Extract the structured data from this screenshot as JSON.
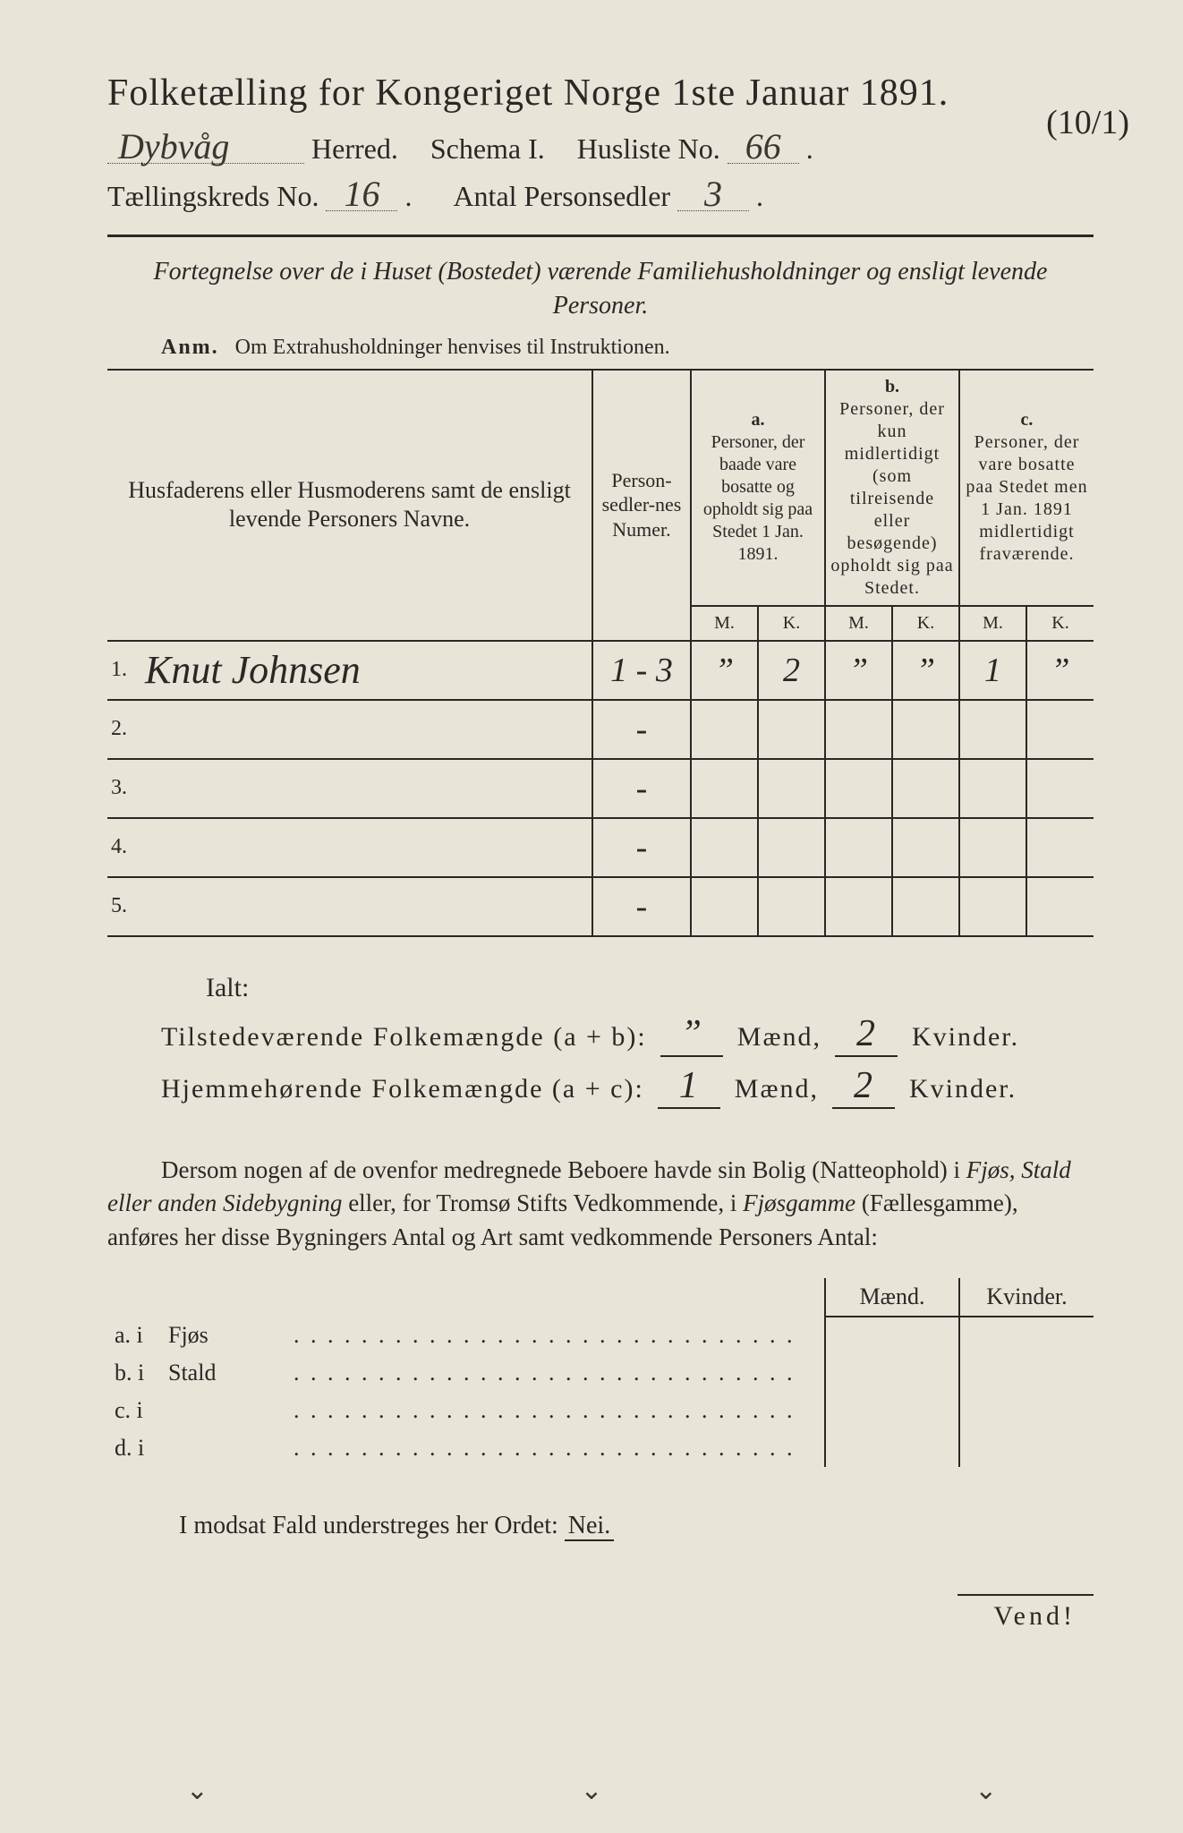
{
  "header": {
    "title": "Folketælling for Kongeriget Norge 1ste Januar 1891.",
    "herred_value": "Dybvåg",
    "herred_label": "Herred.",
    "schema_label": "Schema I.",
    "husliste_label": "Husliste No.",
    "husliste_value": "66",
    "annotation": "(10/1)",
    "kreds_label": "Tællingskreds No.",
    "kreds_value": "16",
    "antal_label": "Antal Personsedler",
    "antal_value": "3"
  },
  "subtitle": "Fortegnelse over de i Huset (Bostedet) værende Familiehusholdninger og ensligt levende Personer.",
  "anm_label": "Anm.",
  "anm_text": "Om Extrahusholdninger henvises til Instruktionen.",
  "table": {
    "col_names": "Husfaderens eller Husmoderens samt de ensligt levende Personers Navne.",
    "col_nums": "Person-sedler-nes Numer.",
    "col_a_label": "a.",
    "col_a": "Personer, der baade vare bosatte og opholdt sig paa Stedet 1 Jan. 1891.",
    "col_b_label": "b.",
    "col_b": "Personer, der kun midlertidigt (som tilreisende eller besøgende) opholdt sig paa Stedet.",
    "col_c_label": "c.",
    "col_c": "Personer, der vare bosatte paa Stedet men 1 Jan. 1891 midlertidigt fraværende.",
    "m": "M.",
    "k": "K.",
    "rows": [
      {
        "n": "1.",
        "name": "Knut Johnsen",
        "nums": "1 - 3",
        "a_m": "”",
        "a_k": "2",
        "b_m": "”",
        "b_k": "”",
        "c_m": "1",
        "c_k": "”"
      },
      {
        "n": "2.",
        "name": "",
        "nums": "-",
        "a_m": "",
        "a_k": "",
        "b_m": "",
        "b_k": "",
        "c_m": "",
        "c_k": ""
      },
      {
        "n": "3.",
        "name": "",
        "nums": "-",
        "a_m": "",
        "a_k": "",
        "b_m": "",
        "b_k": "",
        "c_m": "",
        "c_k": ""
      },
      {
        "n": "4.",
        "name": "",
        "nums": "-",
        "a_m": "",
        "a_k": "",
        "b_m": "",
        "b_k": "",
        "c_m": "",
        "c_k": ""
      },
      {
        "n": "5.",
        "name": "",
        "nums": "-",
        "a_m": "",
        "a_k": "",
        "b_m": "",
        "b_k": "",
        "c_m": "",
        "c_k": ""
      }
    ]
  },
  "totals": {
    "ialt": "Ialt:",
    "line1_label": "Tilstedeværende Folkemængde (a + b):",
    "line1_m": "”",
    "line1_k": "2",
    "line2_label": "Hjemmehørende Folkemængde (a + c):",
    "line2_m": "1",
    "line2_k": "2",
    "maend": "Mænd,",
    "kvinder": "Kvinder."
  },
  "paragraph": "Dersom nogen af de ovenfor medregnede Beboere havde sin Bolig (Natteophold) i Fjøs, Stald eller anden Sidebygning eller, for Tromsø Stifts Vedkommende, i Fjøsgamme (Fællesgamme), anføres her disse Bygningers Antal og Art samt vedkommende Personers Antal:",
  "subtable": {
    "maend": "Mænd.",
    "kvinder": "Kvinder.",
    "rows": [
      {
        "lab": "a.  i",
        "type": "Fjøs"
      },
      {
        "lab": "b.  i",
        "type": "Stald"
      },
      {
        "lab": "c.  i",
        "type": ""
      },
      {
        "lab": "d.  i",
        "type": ""
      }
    ]
  },
  "modsat": {
    "text": "I modsat Fald understreges her Ordet:",
    "nei": "Nei."
  },
  "vend": "Vend!",
  "colors": {
    "paper": "#e8e4d8",
    "ink": "#2a2824",
    "hand": "#3a3630"
  }
}
